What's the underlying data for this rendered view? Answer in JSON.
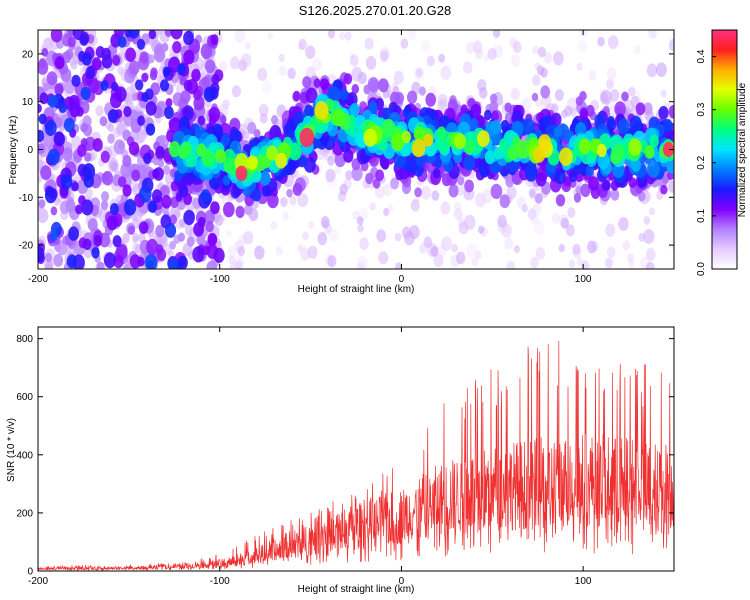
{
  "title": "S126.2025.270.01.20.G28",
  "chart_data": [
    {
      "type": "heatmap",
      "xlabel": "Height of straight line (km)",
      "ylabel": "Frequency (Hz)",
      "xlim": [
        -200,
        150
      ],
      "ylim": [
        -25,
        25
      ],
      "xticks": [
        -200,
        -100,
        0,
        100
      ],
      "yticks": [
        -20,
        -10,
        0,
        10,
        20
      ],
      "colorbar": {
        "label": "Normalized spectral amplitude",
        "range": [
          0.0,
          0.45
        ],
        "ticks": [
          0.0,
          0.1,
          0.2,
          0.3,
          0.4
        ],
        "colors": [
          "#ffffff",
          "#e6ccff",
          "#b380ff",
          "#8000ff",
          "#1a1aff",
          "#0080ff",
          "#00e5ff",
          "#00ff80",
          "#66ff00",
          "#e5ff00",
          "#ffb000",
          "#ff2020",
          "#ff3080"
        ]
      },
      "ridge": {
        "x": [
          -200,
          -150,
          -120,
          -100,
          -85,
          -70,
          -60,
          -55,
          -48,
          -42,
          -35,
          -25,
          -10,
          0,
          20,
          50,
          80,
          110,
          150
        ],
        "frequency": [
          0,
          0,
          0,
          -2,
          -4,
          -2,
          1,
          2,
          5,
          8,
          7,
          5,
          3,
          2,
          2,
          1,
          0,
          0,
          0
        ]
      },
      "noise_region_x": [
        -200,
        -100
      ],
      "peak_amplitude": 0.45
    },
    {
      "type": "line",
      "xlabel": "Height of straight line (km)",
      "ylabel": "SNR (10 * v/v)",
      "xlim": [
        -200,
        150
      ],
      "ylim": [
        0,
        840
      ],
      "xticks": [
        -200,
        -100,
        0,
        100
      ],
      "yticks": [
        0,
        200,
        400,
        600,
        800
      ],
      "color": "#f03030",
      "envelope": {
        "x": [
          -200,
          -150,
          -120,
          -100,
          -80,
          -60,
          -40,
          -20,
          0,
          20,
          40,
          60,
          80,
          100,
          120,
          150
        ],
        "mean": [
          8,
          10,
          15,
          25,
          50,
          90,
          130,
          150,
          180,
          230,
          260,
          280,
          290,
          300,
          290,
          280
        ],
        "max": [
          18,
          22,
          30,
          60,
          130,
          180,
          240,
          280,
          400,
          630,
          680,
          720,
          830,
          750,
          740,
          690
        ]
      }
    }
  ]
}
